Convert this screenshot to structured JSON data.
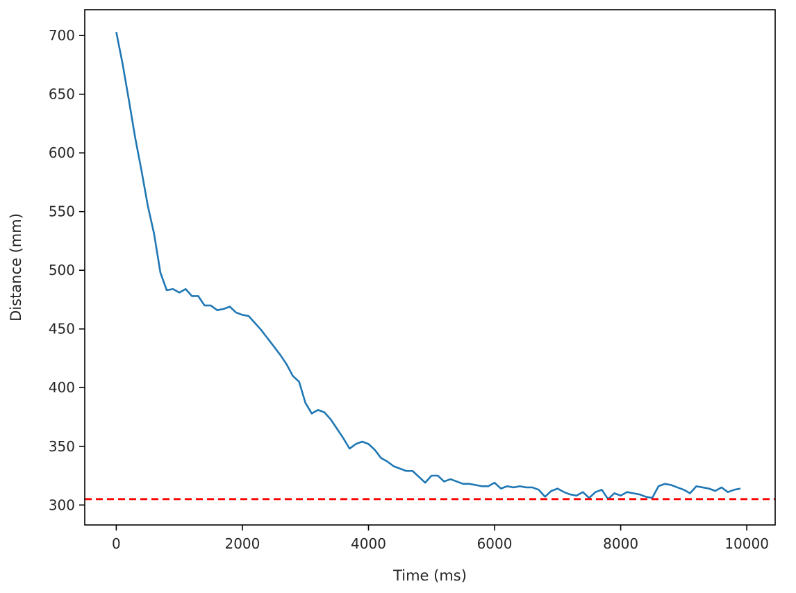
{
  "chart_data": {
    "type": "line",
    "xlabel": "Time (ms)",
    "ylabel": "Distance (mm)",
    "xlim": [
      -500,
      10450
    ],
    "ylim": [
      283,
      722
    ],
    "x_ticks": [
      0,
      2000,
      4000,
      6000,
      8000,
      10000
    ],
    "y_ticks": [
      300,
      350,
      400,
      450,
      500,
      550,
      600,
      650,
      700
    ],
    "grid": false,
    "legend": "none",
    "series": [
      {
        "color": "#1f77b4",
        "style": "solid",
        "x": [
          0,
          100,
          200,
          300,
          400,
          500,
          600,
          700,
          800,
          900,
          1000,
          1100,
          1200,
          1300,
          1400,
          1500,
          1600,
          1700,
          1800,
          1900,
          2000,
          2100,
          2200,
          2300,
          2400,
          2500,
          2600,
          2700,
          2800,
          2900,
          3000,
          3100,
          3200,
          3300,
          3400,
          3500,
          3600,
          3700,
          3800,
          3900,
          4000,
          4100,
          4200,
          4300,
          4400,
          4500,
          4600,
          4700,
          4800,
          4900,
          5000,
          5100,
          5200,
          5300,
          5400,
          5500,
          5600,
          5700,
          5800,
          5900,
          6000,
          6100,
          6200,
          6300,
          6400,
          6500,
          6600,
          6700,
          6800,
          6900,
          7000,
          7100,
          7200,
          7300,
          7400,
          7500,
          7600,
          7700,
          7800,
          7900,
          8000,
          8100,
          8200,
          8300,
          8400,
          8500,
          8600,
          8700,
          8800,
          8900,
          9000,
          9100,
          9200,
          9300,
          9400,
          9500,
          9600,
          9700,
          9800,
          9900
        ],
        "y": [
          703,
          676,
          645,
          613,
          585,
          555,
          531,
          498,
          483,
          484,
          481,
          484,
          478,
          478,
          470,
          470,
          466,
          467,
          469,
          464,
          462,
          461,
          455,
          449,
          442,
          435,
          428,
          420,
          410,
          405,
          387,
          378,
          381,
          379,
          373,
          365,
          357,
          348,
          352,
          354,
          352,
          347,
          340,
          337,
          333,
          331,
          329,
          329,
          324,
          319,
          325,
          325,
          320,
          322,
          320,
          318,
          318,
          317,
          316,
          316,
          319,
          314,
          316,
          315,
          316,
          315,
          315,
          313,
          307,
          312,
          314,
          311,
          309,
          308,
          311,
          306,
          311,
          313,
          305,
          310,
          308,
          311,
          310,
          309,
          307,
          306,
          316,
          318,
          317,
          315,
          313,
          310,
          316,
          315,
          314,
          312,
          315,
          311,
          313,
          314
        ]
      }
    ],
    "reference_line": {
      "y": 305,
      "color": "#ff0000",
      "style": "dashed"
    }
  }
}
